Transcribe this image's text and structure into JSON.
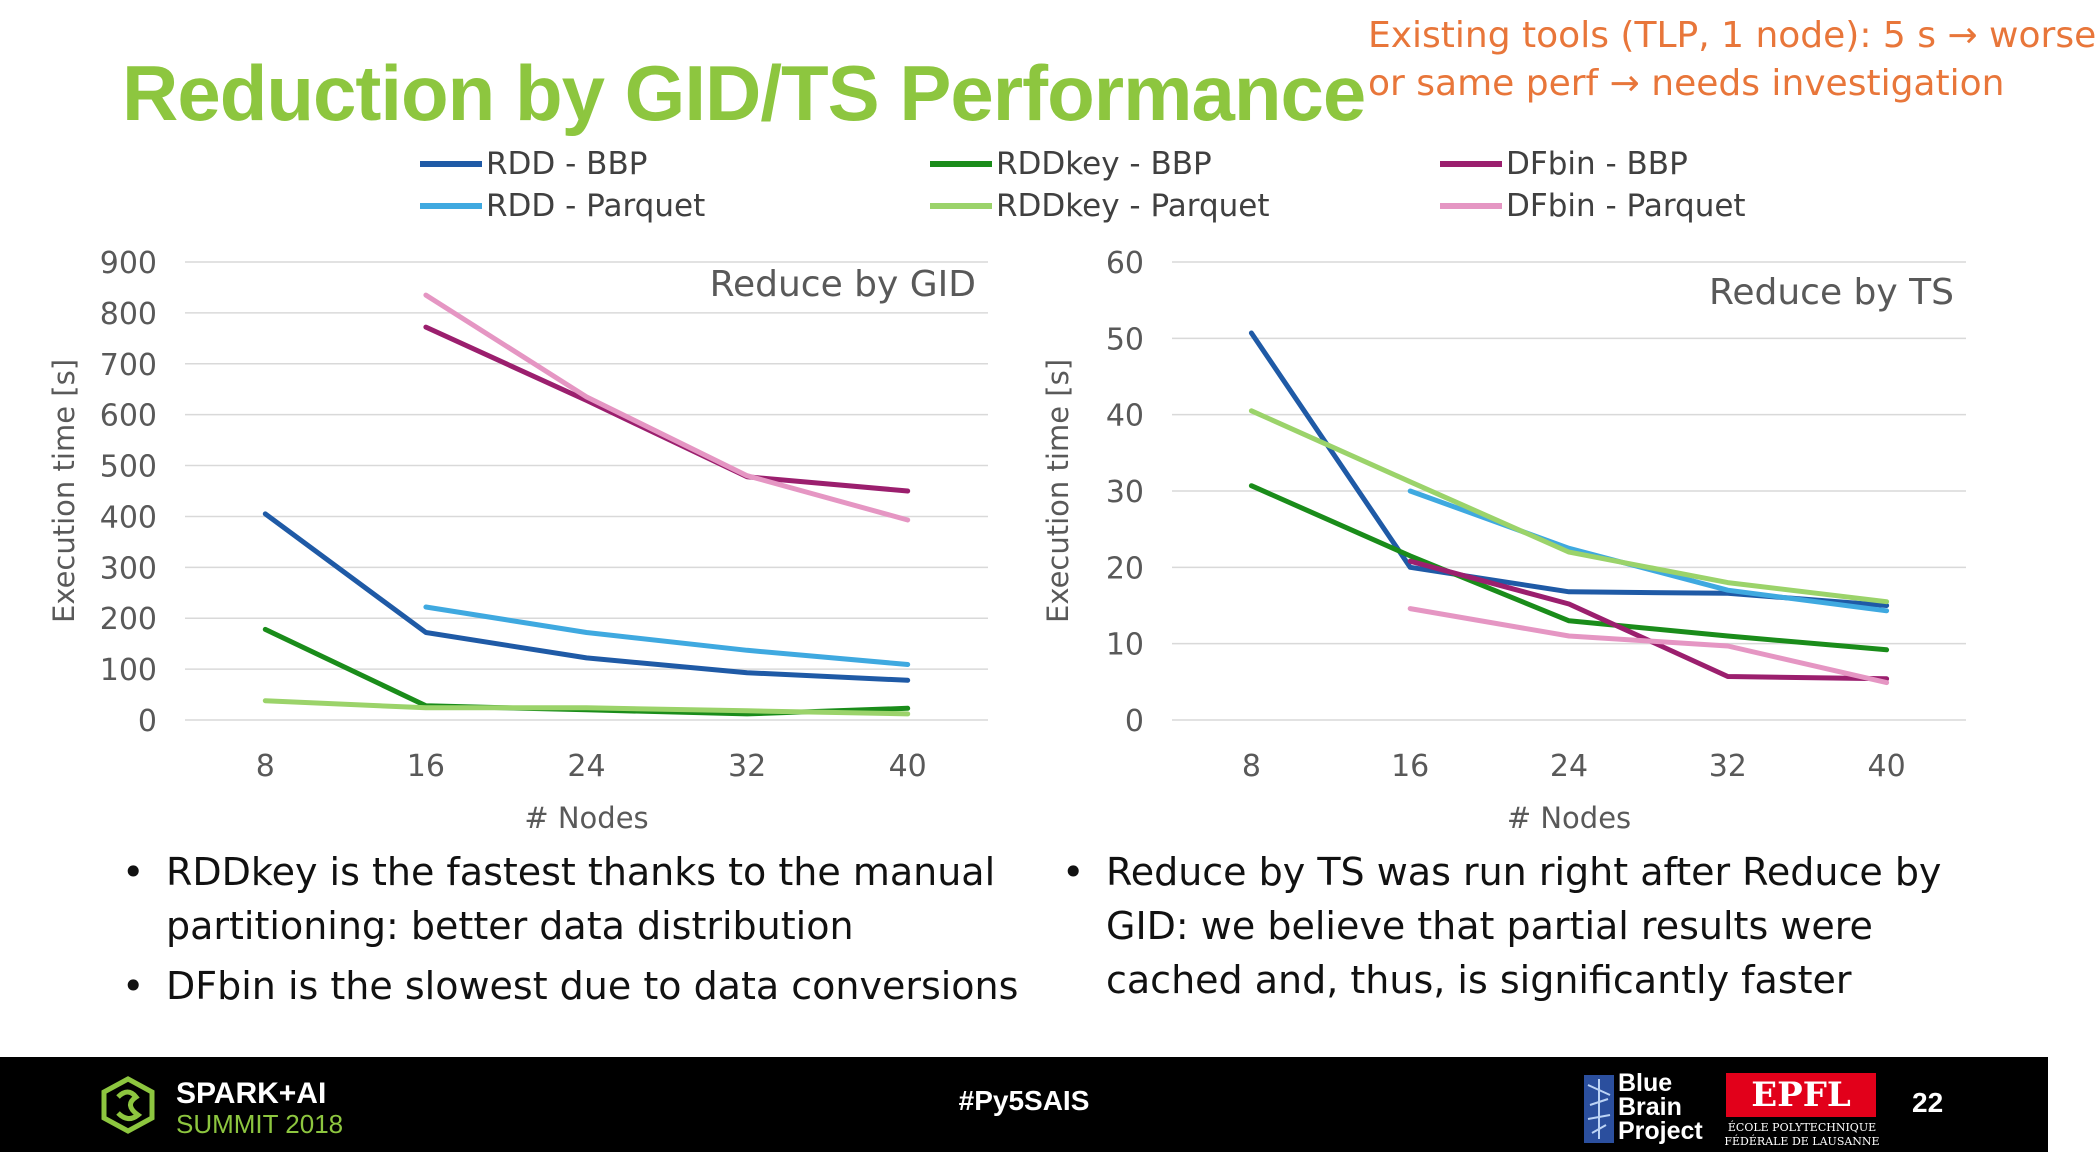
{
  "slide": {
    "title": "Reduction by GID/TS Performance",
    "note_lines": [
      "Existing tools (TLP, 1 node): 5 s → worse",
      "or same perf → needs investigation"
    ],
    "accent_color": "#8dc63f",
    "note_color": "#e8763a"
  },
  "legend": [
    {
      "name": "RDD - BBP",
      "color": "#1f5aa6"
    },
    {
      "name": "RDD - Parquet",
      "color": "#3fa9e0"
    },
    {
      "name": "RDDkey - BBP",
      "color": "#1a8c1a"
    },
    {
      "name": "RDDkey - Parquet",
      "color": "#9bd36a"
    },
    {
      "name": "DFbin - BBP",
      "color": "#9b1f6e"
    },
    {
      "name": "DFbin - Parquet",
      "color": "#e596c3"
    }
  ],
  "chart_data": [
    {
      "type": "line",
      "annotation": "Reduce by GID",
      "xlabel": "# Nodes",
      "ylabel": "Execution time [s]",
      "x": [
        8,
        16,
        24,
        32,
        40
      ],
      "ylim": [
        0,
        900
      ],
      "yticks": [
        0,
        100,
        200,
        300,
        400,
        500,
        600,
        700,
        800,
        900
      ],
      "grid": true,
      "legend": "top",
      "series": [
        {
          "name": "RDD - BBP",
          "color": "#1f5aa6",
          "values": [
            405,
            172,
            122,
            93,
            78
          ]
        },
        {
          "name": "RDD - Parquet",
          "color": "#3fa9e0",
          "values": [
            null,
            222,
            172,
            137,
            109
          ]
        },
        {
          "name": "RDDkey - BBP",
          "color": "#1a8c1a",
          "values": [
            178,
            28,
            20,
            12,
            23
          ]
        },
        {
          "name": "RDDkey - Parquet",
          "color": "#9bd36a",
          "values": [
            38,
            24,
            24,
            18,
            12
          ]
        },
        {
          "name": "DFbin - BBP",
          "color": "#9b1f6e",
          "values": [
            null,
            772,
            628,
            478,
            450
          ]
        },
        {
          "name": "DFbin - Parquet",
          "color": "#e596c3",
          "values": [
            null,
            835,
            635,
            480,
            393
          ]
        }
      ]
    },
    {
      "type": "line",
      "annotation": "Reduce by TS",
      "xlabel": "# Nodes",
      "ylabel": "Execution time [s]",
      "x": [
        8,
        16,
        24,
        32,
        40
      ],
      "ylim": [
        0,
        60
      ],
      "yticks": [
        0,
        10,
        20,
        30,
        40,
        50,
        60
      ],
      "grid": true,
      "legend": "top",
      "series": [
        {
          "name": "RDD - BBP",
          "color": "#1f5aa6",
          "values": [
            50.7,
            20,
            16.8,
            16.6,
            15
          ]
        },
        {
          "name": "RDD - Parquet",
          "color": "#3fa9e0",
          "values": [
            null,
            30,
            22.5,
            17,
            14.3
          ]
        },
        {
          "name": "RDDkey - BBP",
          "color": "#1a8c1a",
          "values": [
            30.7,
            21.5,
            13,
            11,
            9.2
          ]
        },
        {
          "name": "RDDkey - Parquet",
          "color": "#9bd36a",
          "values": [
            40.5,
            31.2,
            22,
            18,
            15.5
          ]
        },
        {
          "name": "DFbin - BBP",
          "color": "#9b1f6e",
          "values": [
            null,
            20.8,
            15.2,
            5.7,
            5.4
          ]
        },
        {
          "name": "DFbin - Parquet",
          "color": "#e596c3",
          "values": [
            null,
            14.6,
            11,
            9.7,
            4.9
          ]
        }
      ]
    }
  ],
  "bullets_left": [
    {
      "lines": [
        "RDDkey is the fastest thanks to the manual",
        "partitioning: better data distribution"
      ]
    },
    {
      "lines": [
        "DFbin is the slowest due to data conversions"
      ]
    }
  ],
  "bullets_right": [
    {
      "lines": [
        "Reduce by TS was run right after Reduce by",
        "GID: we believe that partial results were",
        "cached and, thus, is significantly faster"
      ]
    }
  ],
  "footer": {
    "event_name": "SPARK+AI",
    "event_year": "SUMMIT 2018",
    "hashtag": "#Py5SAIS",
    "partner_lines": [
      "Blue",
      "Brain",
      "Project"
    ],
    "epfl_logo": "EPFL",
    "epfl_sub": [
      "ÉCOLE POLYTECHNIQUE",
      "FÉDÉRALE DE LAUSANNE"
    ],
    "page": "22",
    "spark_logo_icon": "spark-ai-logo-icon",
    "bbp_icon": "blue-brain-icon"
  }
}
